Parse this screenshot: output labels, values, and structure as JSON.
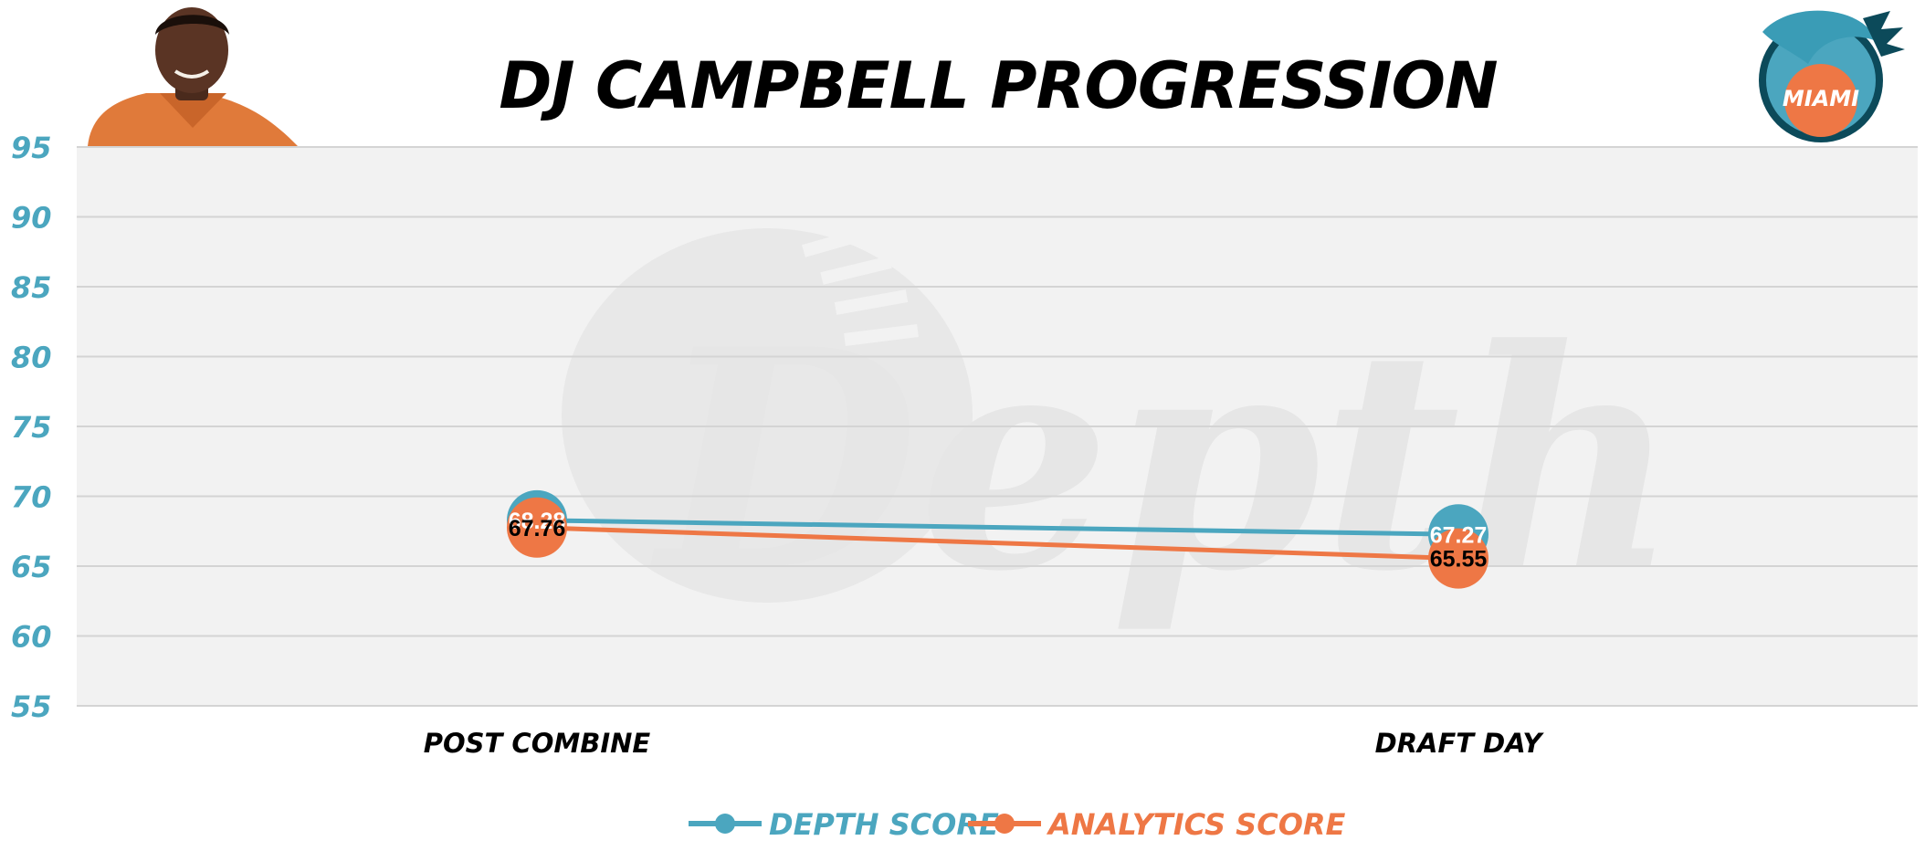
{
  "chart_data": {
    "type": "line",
    "title": "DJ CAMPBELL PROGRESSION",
    "categories": [
      "POST COMBINE",
      "DRAFT DAY"
    ],
    "series": [
      {
        "name": "DEPTH SCORE",
        "values": [
          68.28,
          67.27
        ],
        "color": "#4ba6bf",
        "label_color": "#ffffff"
      },
      {
        "name": "ANALYTICS SCORE",
        "values": [
          67.76,
          65.55
        ],
        "color": "#ee7745",
        "label_color": "#000000"
      }
    ],
    "yticks": [
      55,
      60,
      65,
      70,
      75,
      80,
      85,
      90,
      95
    ],
    "ylim": [
      55,
      95
    ],
    "xlabel": "",
    "ylabel": "",
    "grid": true,
    "legend_position": "bottom",
    "plot_background": "#f2f2f2",
    "gridline_color": "#d4d4d4"
  },
  "branding": {
    "watermark": "Depth",
    "team_logo_text": "MIAMI",
    "player_photo": "player-headshot",
    "team_logo": "dolphin-logo"
  }
}
